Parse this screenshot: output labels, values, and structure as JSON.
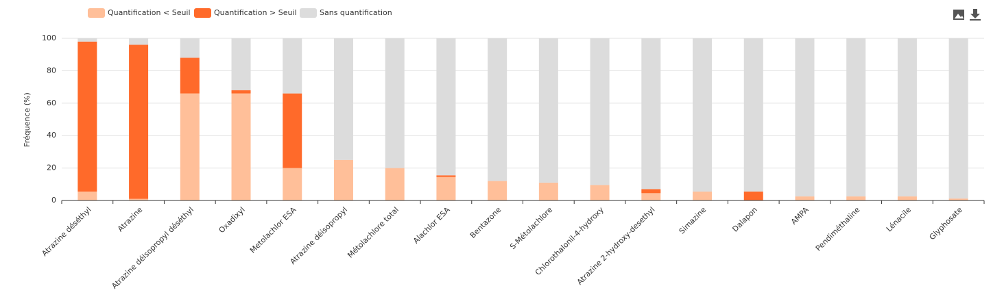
{
  "chart_data": {
    "type": "stacked_bar",
    "y_label": "Fréquence (%)",
    "categories": [
      "Atrazine déséthyl",
      "Atrazine",
      "Atrazine déisopropyl déséthyl",
      "Oxadixyl",
      "Metolachlor ESA",
      "Atrazine déisopropyl",
      "Métolachlore total",
      "Alachlor ESA",
      "Bentazone",
      "S-Métolachlore",
      "Chlorothalonil-4-hydroxy",
      "Atrazine 2-hydroxy-desethyl",
      "Simazine",
      "Dalapon",
      "AMPA",
      "Pendiméthaline",
      "Lénacile",
      "Glyphosate"
    ],
    "series": [
      {
        "name": "Quantification < Seuil",
        "color": "#ffbf99",
        "values": [
          5.5,
          1,
          66,
          66,
          20,
          25,
          20,
          14.5,
          12,
          11,
          9.5,
          4.5,
          5.5,
          0,
          2.5,
          2.5,
          2.5,
          1.2
        ]
      },
      {
        "name": "Quantification > Seuil",
        "color": "#ff6a2a",
        "values": [
          92.5,
          95,
          22,
          2,
          46,
          0,
          0,
          1,
          0,
          0,
          0,
          2.5,
          0,
          5.5,
          0,
          0,
          0,
          0
        ]
      },
      {
        "name": "Sans quantification",
        "color": "#dcdcdc",
        "values": [
          2,
          4,
          12,
          32,
          34,
          75,
          80,
          84.5,
          88,
          89,
          90.5,
          93,
          94.5,
          94.5,
          97.5,
          97.5,
          97.5,
          98.8
        ]
      }
    ],
    "ylim": [
      0,
      100
    ],
    "yticks": [
      0,
      20,
      40,
      60,
      80,
      100
    ],
    "grid": true
  }
}
